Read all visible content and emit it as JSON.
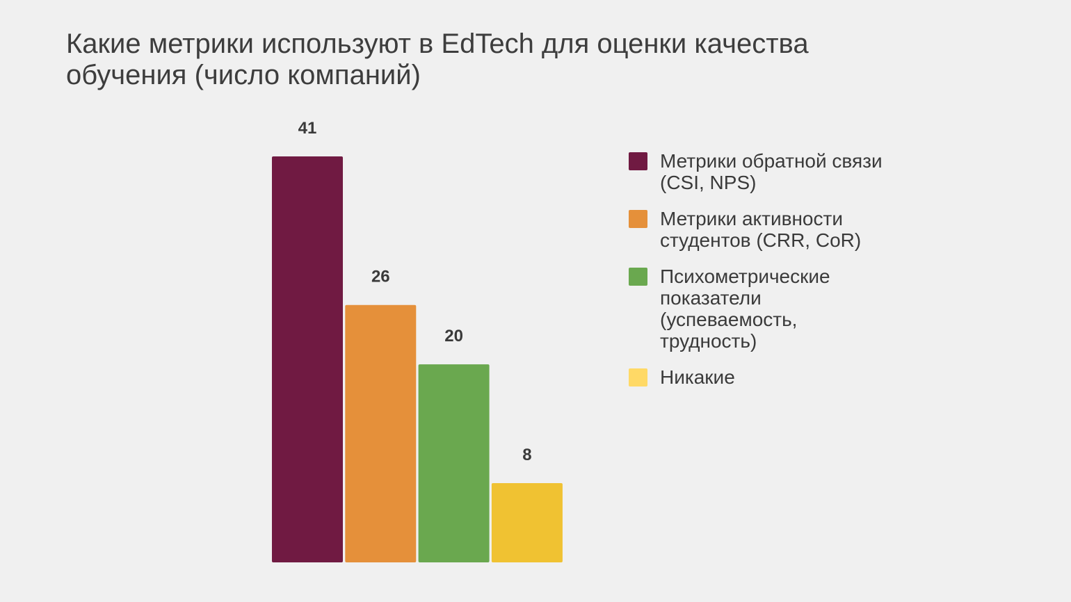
{
  "page": {
    "title": "Какие метрики используют в EdTech для оценки качества обучения (число компаний)"
  },
  "colors": {
    "background": "#f0f0f0",
    "text": "#3a3a3a"
  },
  "chart_data": {
    "type": "bar",
    "title": "Какие метрики используют в EdTech для оценки качества обучения (число компаний)",
    "categories": [
      "Метрики обратной связи (CSI, NPS)",
      "Метрики активности студентов (CRR, CoR)",
      "Психометрические показатели (успеваемость, трудность)",
      "Никакие"
    ],
    "values": [
      41,
      26,
      20,
      8
    ],
    "value_labels": [
      "41",
      "26",
      "20",
      "8"
    ],
    "bar_colors": [
      "#701a42",
      "#e5903a",
      "#6aa84f",
      "#f0c232"
    ],
    "legend_colors": [
      "#701a42",
      "#e5903a",
      "#6aa84f",
      "#ffd966"
    ],
    "ylim": [
      0,
      41
    ],
    "xlabel": "",
    "ylabel": "",
    "grid": false,
    "legend_position": "right"
  }
}
